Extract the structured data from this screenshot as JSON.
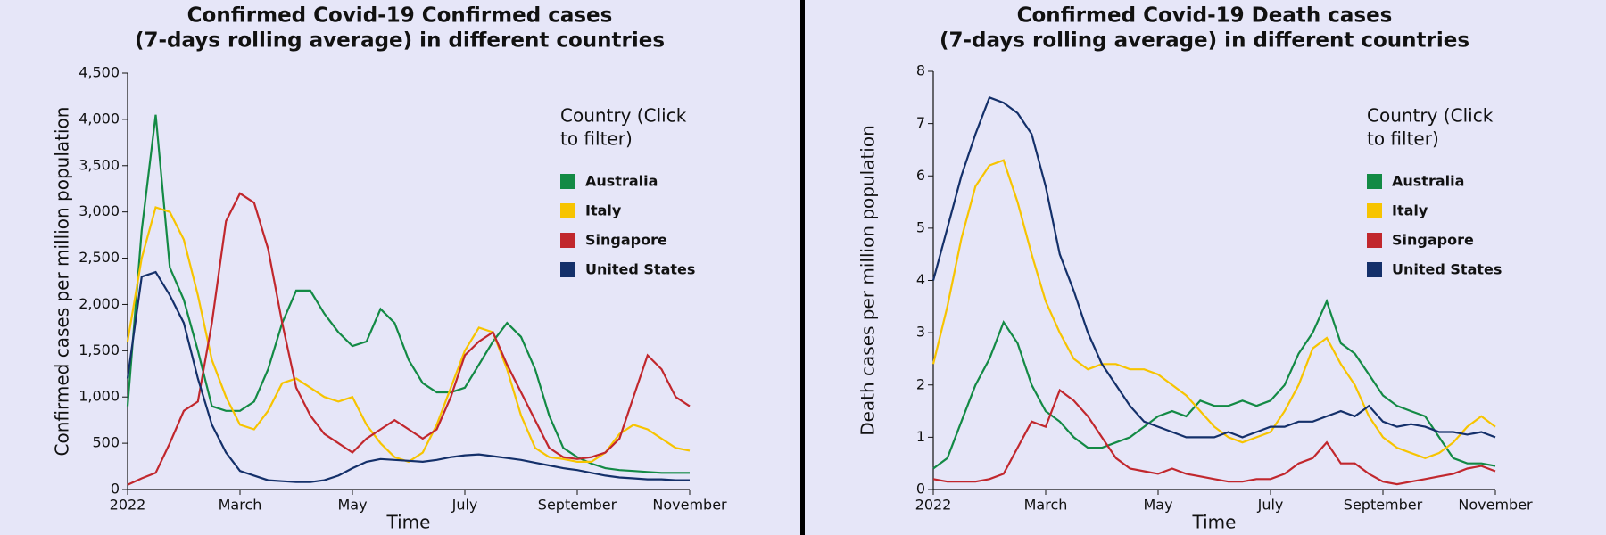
{
  "chart_data": [
    {
      "type": "line",
      "title": [
        "Confirmed Covid-19 Confirmed cases",
        "(7-days rolling average) in different countries"
      ],
      "x_label": "Time",
      "y_label": "Confirmed cases per million population",
      "legend_title": [
        "Country (Click",
        "to filter)"
      ],
      "legend": "upper right",
      "xlim": [
        0,
        10
      ],
      "xticks": [
        {
          "value": 0,
          "label": "2022"
        },
        {
          "value": 2,
          "label": "March"
        },
        {
          "value": 4,
          "label": "May"
        },
        {
          "value": 6,
          "label": "July"
        },
        {
          "value": 8,
          "label": "September"
        },
        {
          "value": 10,
          "label": "November"
        }
      ],
      "ylim": [
        0,
        4500
      ],
      "yticks": [
        0,
        500,
        {
          "value": 1000,
          "label": "1,000"
        },
        {
          "value": 1500,
          "label": "1,500"
        },
        {
          "value": 2000,
          "label": "2,000"
        },
        {
          "value": 2500,
          "label": "2,500"
        },
        {
          "value": 3000,
          "label": "3,000"
        },
        {
          "value": 3500,
          "label": "3,500"
        },
        {
          "value": 4000,
          "label": "4,000"
        },
        {
          "value": 4500,
          "label": "4,500"
        }
      ],
      "x": [
        0,
        0.25,
        0.5,
        0.75,
        1,
        1.25,
        1.5,
        1.75,
        2,
        2.25,
        2.5,
        2.75,
        3,
        3.25,
        3.5,
        3.75,
        4,
        4.25,
        4.5,
        4.75,
        5,
        5.25,
        5.5,
        5.75,
        6,
        6.25,
        6.5,
        6.75,
        7,
        7.25,
        7.5,
        7.75,
        8,
        8.25,
        8.5,
        8.75,
        9,
        9.25,
        9.5,
        9.75,
        10
      ],
      "series": [
        {
          "name": "Australia",
          "color": "#138a45",
          "values": [
            900,
            2800,
            4050,
            2400,
            2050,
            1500,
            900,
            850,
            850,
            950,
            1300,
            1800,
            2150,
            2150,
            1900,
            1700,
            1550,
            1600,
            1950,
            1800,
            1400,
            1150,
            1050,
            1050,
            1100,
            1350,
            1600,
            1800,
            1650,
            1300,
            800,
            450,
            350,
            280,
            230,
            210,
            200,
            190,
            180,
            180,
            180
          ]
        },
        {
          "name": "Italy",
          "color": "#f7c400",
          "values": [
            1600,
            2500,
            3050,
            3000,
            2700,
            2100,
            1400,
            1000,
            700,
            650,
            850,
            1150,
            1200,
            1100,
            1000,
            950,
            1000,
            700,
            500,
            350,
            300,
            400,
            700,
            1100,
            1500,
            1750,
            1700,
            1300,
            800,
            450,
            350,
            330,
            300,
            300,
            400,
            600,
            700,
            650,
            550,
            450,
            420
          ]
        },
        {
          "name": "Singapore",
          "color": "#c1272d",
          "values": [
            50,
            120,
            180,
            500,
            850,
            950,
            1800,
            2900,
            3200,
            3100,
            2600,
            1800,
            1100,
            800,
            600,
            500,
            400,
            550,
            650,
            750,
            650,
            550,
            650,
            1000,
            1450,
            1600,
            1700,
            1350,
            1050,
            750,
            450,
            350,
            330,
            350,
            400,
            550,
            1000,
            1450,
            1300,
            1000,
            900
          ]
        },
        {
          "name": "United States",
          "color": "#14306a",
          "values": [
            1200,
            2300,
            2350,
            2100,
            1800,
            1200,
            700,
            400,
            200,
            150,
            100,
            90,
            80,
            80,
            100,
            150,
            230,
            300,
            330,
            320,
            310,
            300,
            320,
            350,
            370,
            380,
            360,
            340,
            320,
            290,
            260,
            230,
            210,
            180,
            150,
            130,
            120,
            110,
            110,
            100,
            100
          ]
        }
      ]
    },
    {
      "type": "line",
      "title": [
        "Confirmed Covid-19 Death cases",
        "(7-days rolling average) in different countries"
      ],
      "x_label": "Time",
      "y_label": "Death cases per million population",
      "legend_title": [
        "Country (Click",
        "to filter)"
      ],
      "legend": "upper right",
      "xlim": [
        0,
        10
      ],
      "xticks": [
        {
          "value": 0,
          "label": "2022"
        },
        {
          "value": 2,
          "label": "March"
        },
        {
          "value": 4,
          "label": "May"
        },
        {
          "value": 6,
          "label": "July"
        },
        {
          "value": 8,
          "label": "September"
        },
        {
          "value": 10,
          "label": "November"
        }
      ],
      "ylim": [
        0,
        8
      ],
      "yticks": [
        0,
        1,
        2,
        3,
        4,
        5,
        6,
        7,
        8
      ],
      "x": [
        0,
        0.25,
        0.5,
        0.75,
        1,
        1.25,
        1.5,
        1.75,
        2,
        2.25,
        2.5,
        2.75,
        3,
        3.25,
        3.5,
        3.75,
        4,
        4.25,
        4.5,
        4.75,
        5,
        5.25,
        5.5,
        5.75,
        6,
        6.25,
        6.5,
        6.75,
        7,
        7.25,
        7.5,
        7.75,
        8,
        8.25,
        8.5,
        8.75,
        9,
        9.25,
        9.5,
        9.75,
        10
      ],
      "series": [
        {
          "name": "Australia",
          "color": "#138a45",
          "values": [
            0.4,
            0.6,
            1.3,
            2.0,
            2.5,
            3.2,
            2.8,
            2.0,
            1.5,
            1.3,
            1.0,
            0.8,
            0.8,
            0.9,
            1.0,
            1.2,
            1.4,
            1.5,
            1.4,
            1.7,
            1.6,
            1.6,
            1.7,
            1.6,
            1.7,
            2.0,
            2.6,
            3.0,
            3.6,
            2.8,
            2.6,
            2.2,
            1.8,
            1.6,
            1.5,
            1.4,
            1.0,
            0.6,
            0.5,
            0.5,
            0.45
          ]
        },
        {
          "name": "Italy",
          "color": "#f7c400",
          "values": [
            2.4,
            3.5,
            4.8,
            5.8,
            6.2,
            6.3,
            5.5,
            4.5,
            3.6,
            3.0,
            2.5,
            2.3,
            2.4,
            2.4,
            2.3,
            2.3,
            2.2,
            2.0,
            1.8,
            1.5,
            1.2,
            1.0,
            0.9,
            1.0,
            1.1,
            1.5,
            2.0,
            2.7,
            2.9,
            2.4,
            2.0,
            1.4,
            1.0,
            0.8,
            0.7,
            0.6,
            0.7,
            0.9,
            1.2,
            1.4,
            1.2
          ]
        },
        {
          "name": "Singapore",
          "color": "#c1272d",
          "values": [
            0.2,
            0.15,
            0.15,
            0.15,
            0.2,
            0.3,
            0.8,
            1.3,
            1.2,
            1.9,
            1.7,
            1.4,
            1.0,
            0.6,
            0.4,
            0.35,
            0.3,
            0.4,
            0.3,
            0.25,
            0.2,
            0.15,
            0.15,
            0.2,
            0.2,
            0.3,
            0.5,
            0.6,
            0.9,
            0.5,
            0.5,
            0.3,
            0.15,
            0.1,
            0.15,
            0.2,
            0.25,
            0.3,
            0.4,
            0.45,
            0.35
          ]
        },
        {
          "name": "United States",
          "color": "#14306a",
          "values": [
            4.0,
            5.0,
            6.0,
            6.8,
            7.5,
            7.4,
            7.2,
            6.8,
            5.8,
            4.5,
            3.8,
            3.0,
            2.4,
            2.0,
            1.6,
            1.3,
            1.2,
            1.1,
            1.0,
            1.0,
            1.0,
            1.1,
            1.0,
            1.1,
            1.2,
            1.2,
            1.3,
            1.3,
            1.4,
            1.5,
            1.4,
            1.6,
            1.3,
            1.2,
            1.25,
            1.2,
            1.1,
            1.1,
            1.05,
            1.1,
            1.0
          ]
        }
      ]
    }
  ]
}
